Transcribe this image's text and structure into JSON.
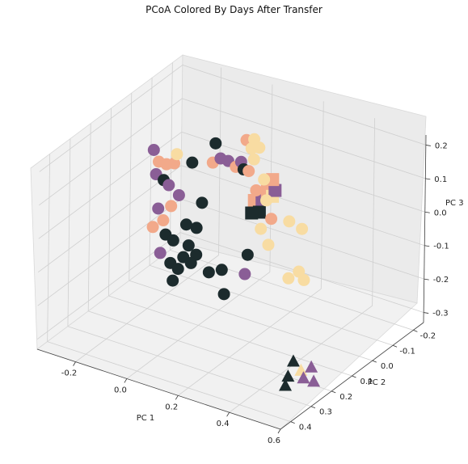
{
  "chart_data": {
    "type": "scatter",
    "projection": "3d",
    "title": "PCoA Colored By Days After Transfer",
    "xlabel": "PC 1",
    "ylabel": "PC 2",
    "zlabel": "PC 3",
    "xlim": [
      -0.35,
      0.6
    ],
    "ylim": [
      -0.25,
      0.45
    ],
    "zlim": [
      -0.33,
      0.23
    ],
    "xticks": [
      "-0.2",
      "0.0",
      "0.2",
      "0.4",
      "0.6"
    ],
    "yticks": [
      "-0.2",
      "-0.1",
      "0.0",
      "0.1",
      "0.2",
      "0.3",
      "0.4"
    ],
    "zticks": [
      "-0.3",
      "-0.2",
      "-0.1",
      "0.0",
      "0.1",
      "0.2"
    ],
    "grid": true,
    "legend": "none",
    "colors": {
      "dark": "#1c2b2d",
      "purple": "#8a5e96",
      "salmon": "#f2a98a",
      "cream": "#f8dca2"
    },
    "points": [
      {
        "x": -0.3,
        "y": -0.05,
        "z": 0.05,
        "color": "purple",
        "marker": "circle"
      },
      {
        "x": -0.28,
        "y": -0.05,
        "z": 0.02,
        "color": "salmon",
        "marker": "circle"
      },
      {
        "x": -0.29,
        "y": -0.05,
        "z": -0.02,
        "color": "purple",
        "marker": "circle"
      },
      {
        "x": -0.26,
        "y": -0.05,
        "z": -0.03,
        "color": "dark",
        "marker": "circle"
      },
      {
        "x": -0.25,
        "y": -0.05,
        "z": 0.02,
        "color": "salmon",
        "marker": "circle"
      },
      {
        "x": -0.24,
        "y": -0.05,
        "z": -0.04,
        "color": "purple",
        "marker": "circle"
      },
      {
        "x": -0.22,
        "y": -0.05,
        "z": 0.03,
        "color": "salmon",
        "marker": "circle"
      },
      {
        "x": -0.2,
        "y": -0.05,
        "z": -0.06,
        "color": "purple",
        "marker": "circle"
      },
      {
        "x": -0.21,
        "y": -0.05,
        "z": 0.06,
        "color": "cream",
        "marker": "circle"
      },
      {
        "x": -0.23,
        "y": -0.05,
        "z": -0.1,
        "color": "salmon",
        "marker": "circle"
      },
      {
        "x": -0.28,
        "y": -0.05,
        "z": -0.12,
        "color": "purple",
        "marker": "circle"
      },
      {
        "x": -0.26,
        "y": -0.05,
        "z": -0.15,
        "color": "salmon",
        "marker": "circle"
      },
      {
        "x": -0.3,
        "y": -0.05,
        "z": -0.18,
        "color": "salmon",
        "marker": "circle"
      },
      {
        "x": -0.25,
        "y": -0.05,
        "z": -0.19,
        "color": "dark",
        "marker": "circle"
      },
      {
        "x": -0.22,
        "y": -0.05,
        "z": -0.2,
        "color": "dark",
        "marker": "circle"
      },
      {
        "x": -0.27,
        "y": -0.05,
        "z": -0.25,
        "color": "purple",
        "marker": "circle"
      },
      {
        "x": -0.23,
        "y": -0.05,
        "z": -0.27,
        "color": "dark",
        "marker": "circle"
      },
      {
        "x": -0.2,
        "y": -0.05,
        "z": -0.28,
        "color": "dark",
        "marker": "circle"
      },
      {
        "x": -0.18,
        "y": -0.05,
        "z": -0.24,
        "color": "dark",
        "marker": "circle"
      },
      {
        "x": -0.22,
        "y": -0.05,
        "z": -0.32,
        "color": "dark",
        "marker": "circle"
      },
      {
        "x": -0.16,
        "y": -0.05,
        "z": -0.2,
        "color": "dark",
        "marker": "circle"
      },
      {
        "x": -0.17,
        "y": -0.05,
        "z": -0.14,
        "color": "dark",
        "marker": "circle"
      },
      {
        "x": -0.13,
        "y": -0.05,
        "z": -0.14,
        "color": "dark",
        "marker": "circle"
      },
      {
        "x": -0.11,
        "y": -0.05,
        "z": -0.06,
        "color": "dark",
        "marker": "circle"
      },
      {
        "x": -0.15,
        "y": -0.05,
        "z": 0.05,
        "color": "dark",
        "marker": "circle"
      },
      {
        "x": -0.06,
        "y": -0.05,
        "z": 0.13,
        "color": "dark",
        "marker": "circle"
      },
      {
        "x": -0.13,
        "y": -0.05,
        "z": -0.22,
        "color": "dark",
        "marker": "circle"
      },
      {
        "x": -0.15,
        "y": -0.05,
        "z": -0.25,
        "color": "dark",
        "marker": "circle"
      },
      {
        "x": -0.08,
        "y": -0.05,
        "z": -0.26,
        "color": "dark",
        "marker": "circle"
      },
      {
        "x": -0.03,
        "y": -0.05,
        "z": -0.24,
        "color": "dark",
        "marker": "circle"
      },
      {
        "x": -0.02,
        "y": -0.05,
        "z": -0.31,
        "color": "dark",
        "marker": "circle"
      },
      {
        "x": -0.07,
        "y": -0.05,
        "z": 0.07,
        "color": "salmon",
        "marker": "circle"
      },
      {
        "x": -0.04,
        "y": -0.05,
        "z": 0.09,
        "color": "purple",
        "marker": "circle"
      },
      {
        "x": -0.01,
        "y": -0.05,
        "z": 0.09,
        "color": "purple",
        "marker": "circle"
      },
      {
        "x": 0.02,
        "y": -0.05,
        "z": 0.08,
        "color": "salmon",
        "marker": "circle"
      },
      {
        "x": 0.04,
        "y": -0.05,
        "z": 0.1,
        "color": "purple",
        "marker": "circle"
      },
      {
        "x": 0.05,
        "y": -0.05,
        "z": 0.08,
        "color": "dark",
        "marker": "circle"
      },
      {
        "x": 0.07,
        "y": -0.05,
        "z": 0.08,
        "color": "salmon",
        "marker": "circle"
      },
      {
        "x": 0.06,
        "y": -0.05,
        "z": 0.17,
        "color": "salmon",
        "marker": "circle"
      },
      {
        "x": 0.08,
        "y": -0.05,
        "z": 0.15,
        "color": "cream",
        "marker": "circle"
      },
      {
        "x": 0.09,
        "y": -0.05,
        "z": 0.18,
        "color": "cream",
        "marker": "circle"
      },
      {
        "x": 0.11,
        "y": -0.05,
        "z": 0.16,
        "color": "cream",
        "marker": "circle"
      },
      {
        "x": 0.09,
        "y": -0.05,
        "z": 0.12,
        "color": "cream",
        "marker": "circle"
      },
      {
        "x": 0.1,
        "y": -0.05,
        "z": 0.03,
        "color": "salmon",
        "marker": "circle"
      },
      {
        "x": 0.13,
        "y": -0.05,
        "z": 0.07,
        "color": "cream",
        "marker": "circle"
      },
      {
        "x": 0.14,
        "y": -0.05,
        "z": 0.01,
        "color": "cream",
        "marker": "circle"
      },
      {
        "x": 0.16,
        "y": -0.05,
        "z": -0.04,
        "color": "salmon",
        "marker": "circle"
      },
      {
        "x": 0.12,
        "y": -0.05,
        "z": -0.08,
        "color": "cream",
        "marker": "circle"
      },
      {
        "x": 0.15,
        "y": -0.05,
        "z": -0.12,
        "color": "cream",
        "marker": "circle"
      },
      {
        "x": 0.23,
        "y": -0.05,
        "z": -0.03,
        "color": "cream",
        "marker": "circle"
      },
      {
        "x": 0.28,
        "y": -0.05,
        "z": -0.04,
        "color": "cream",
        "marker": "circle"
      },
      {
        "x": 0.27,
        "y": -0.05,
        "z": -0.17,
        "color": "cream",
        "marker": "circle"
      },
      {
        "x": 0.29,
        "y": -0.05,
        "z": -0.19,
        "color": "cream",
        "marker": "circle"
      },
      {
        "x": 0.23,
        "y": -0.05,
        "z": -0.2,
        "color": "cream",
        "marker": "circle"
      },
      {
        "x": 0.07,
        "y": -0.05,
        "z": -0.17,
        "color": "dark",
        "marker": "circle"
      },
      {
        "x": 0.06,
        "y": -0.05,
        "z": -0.23,
        "color": "purple",
        "marker": "circle"
      },
      {
        "x": 0.18,
        "y": 0.06,
        "z": 0.07,
        "color": "salmon",
        "marker": "square"
      },
      {
        "x": 0.21,
        "y": 0.06,
        "z": 0.08,
        "color": "purple",
        "marker": "square"
      },
      {
        "x": 0.23,
        "y": 0.06,
        "z": 0.11,
        "color": "salmon",
        "marker": "square"
      },
      {
        "x": 0.2,
        "y": 0.06,
        "z": 0.04,
        "color": "dark",
        "marker": "square"
      },
      {
        "x": 0.17,
        "y": 0.06,
        "z": 0.03,
        "color": "dark",
        "marker": "square"
      },
      {
        "x": 0.25,
        "y": 0.06,
        "z": 0.1,
        "color": "cream",
        "marker": "square"
      },
      {
        "x": 0.26,
        "y": 0.06,
        "z": 0.12,
        "color": "purple",
        "marker": "square"
      },
      {
        "x": 0.25,
        "y": 0.06,
        "z": 0.15,
        "color": "salmon",
        "marker": "square"
      },
      {
        "x": 0.45,
        "y": 0.2,
        "z": -0.28,
        "color": "dark",
        "marker": "triangle"
      },
      {
        "x": 0.43,
        "y": 0.2,
        "z": -0.33,
        "color": "dark",
        "marker": "triangle"
      },
      {
        "x": 0.42,
        "y": 0.2,
        "z": -0.36,
        "color": "dark",
        "marker": "triangle"
      },
      {
        "x": 0.48,
        "y": 0.2,
        "z": -0.3,
        "color": "cream",
        "marker": "triangle"
      },
      {
        "x": 0.49,
        "y": 0.2,
        "z": -0.32,
        "color": "purple",
        "marker": "triangle"
      },
      {
        "x": 0.52,
        "y": 0.2,
        "z": -0.28,
        "color": "purple",
        "marker": "triangle"
      },
      {
        "x": 0.53,
        "y": 0.2,
        "z": -0.32,
        "color": "purple",
        "marker": "triangle"
      }
    ]
  }
}
